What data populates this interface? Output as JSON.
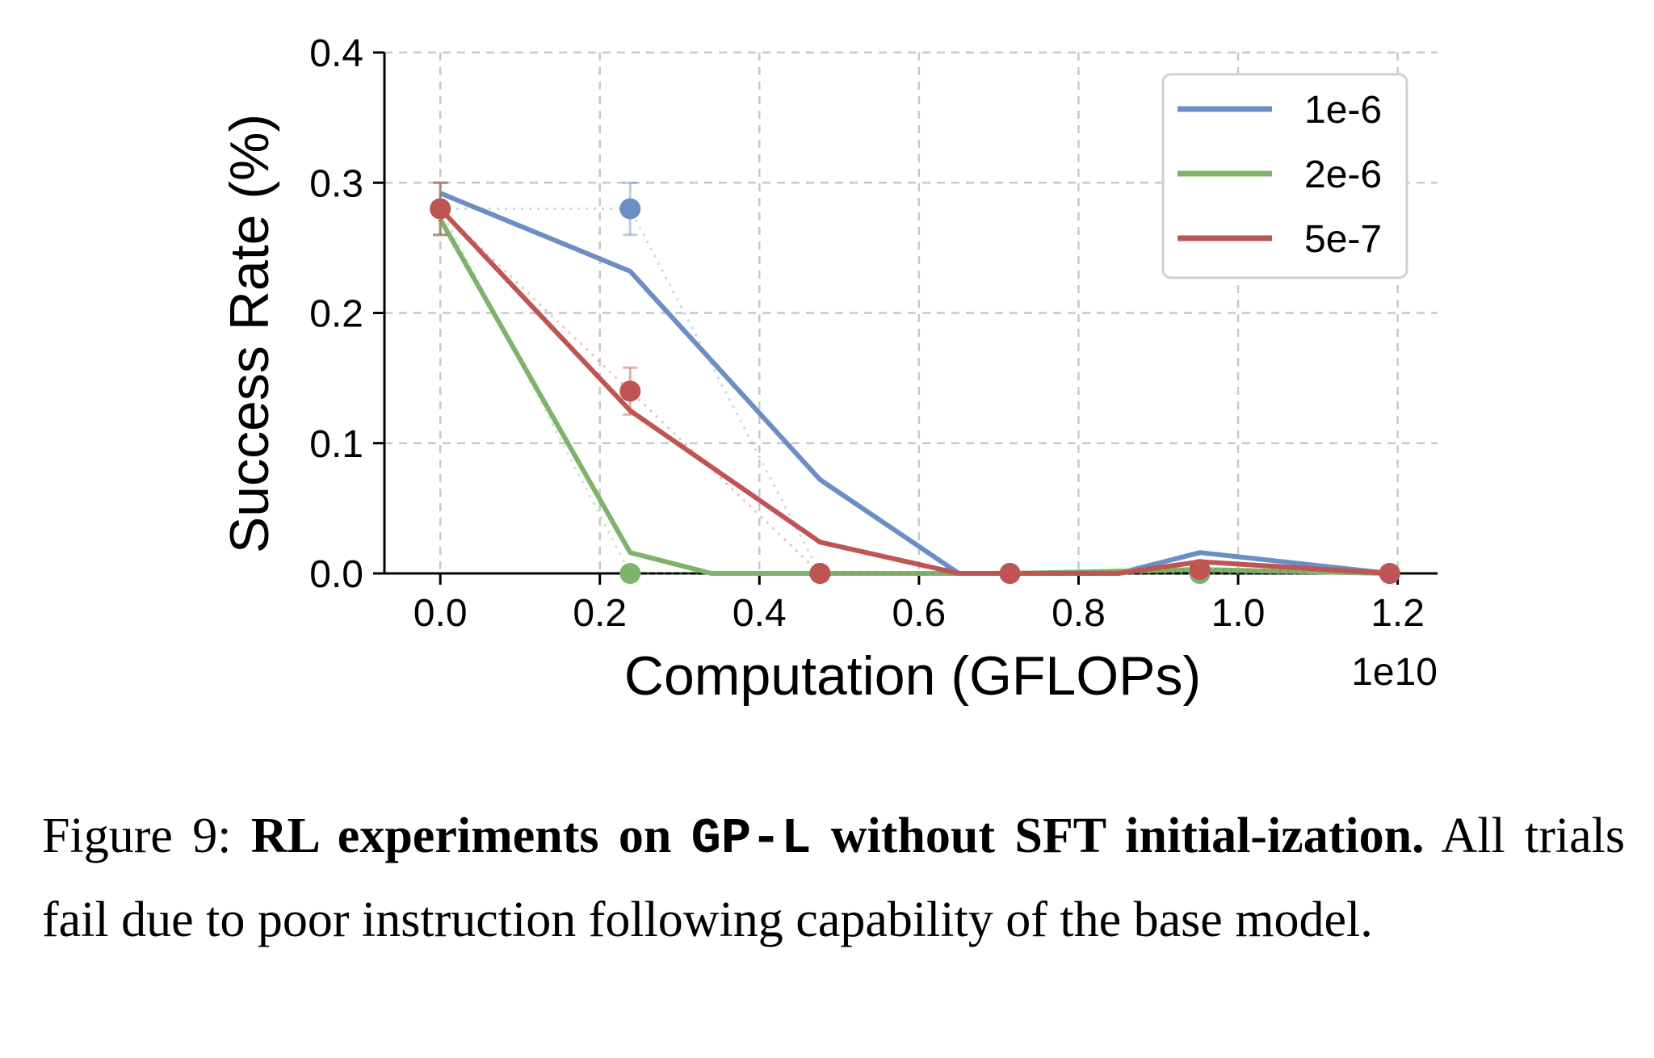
{
  "chart_data": {
    "type": "line",
    "xlabel": "Computation (GFLOPs)",
    "ylabel": "Success Rate (%)",
    "x_offset_label": "1e10",
    "xlim": [
      -0.07,
      1.25
    ],
    "ylim": [
      0.0,
      0.4
    ],
    "xticks": [
      0.0,
      0.2,
      0.4,
      0.6,
      0.8,
      1.0,
      1.2
    ],
    "xtick_labels": [
      "0.0",
      "0.2",
      "0.4",
      "0.6",
      "0.8",
      "1.0",
      "1.2"
    ],
    "yticks": [
      0.0,
      0.1,
      0.2,
      0.3,
      0.4
    ],
    "ytick_labels": [
      "0.0",
      "0.1",
      "0.2",
      "0.3",
      "0.4"
    ],
    "grid": true,
    "legend_position": "top-right",
    "series": [
      {
        "name": "1e-6",
        "color": "#6b8fc2",
        "points_x": [
          0.0,
          0.238,
          0.476,
          0.714,
          0.952,
          1.19
        ],
        "points_y": [
          0.28,
          0.28,
          0.0,
          0.0,
          0.0,
          0.0
        ],
        "errors": [
          0.02,
          0.02,
          0.0,
          0.0,
          0.0,
          0.0
        ],
        "smooth_x": [
          0.0,
          0.238,
          0.476,
          0.65,
          0.714,
          0.85,
          0.952,
          1.19
        ],
        "smooth_y": [
          0.292,
          0.232,
          0.072,
          0.0,
          0.0,
          0.0,
          0.016,
          0.0
        ]
      },
      {
        "name": "2e-6",
        "color": "#7db36b",
        "points_x": [
          0.0,
          0.238,
          0.476,
          0.714,
          0.952,
          1.19
        ],
        "points_y": [
          0.28,
          0.0,
          0.0,
          0.0,
          0.0,
          0.0
        ],
        "errors": [
          0.02,
          0.0,
          0.0,
          0.0,
          0.0,
          0.0
        ],
        "smooth_x": [
          0.0,
          0.238,
          0.34,
          0.714,
          0.952,
          1.19
        ],
        "smooth_y": [
          0.272,
          0.016,
          0.0,
          0.0,
          0.003,
          0.0
        ]
      },
      {
        "name": "5e-7",
        "color": "#bf5553",
        "points_x": [
          0.0,
          0.238,
          0.476,
          0.714,
          0.952,
          1.19
        ],
        "points_y": [
          0.28,
          0.14,
          0.0,
          0.0,
          0.003,
          0.0
        ],
        "errors": [
          0.02,
          0.018,
          0.0,
          0.0,
          0.0,
          0.0
        ],
        "smooth_x": [
          0.0,
          0.238,
          0.476,
          0.65,
          0.714,
          0.85,
          0.952,
          1.19
        ],
        "smooth_y": [
          0.28,
          0.125,
          0.024,
          0.0,
          0.0,
          0.0,
          0.009,
          0.0
        ]
      }
    ]
  },
  "caption": {
    "prefix": "Figure 9: ",
    "bold_part1": "RL experiments on ",
    "mono_part": "GP-L",
    "bold_part2": " without SFT initial-ization.",
    "rest": " All trials fail due to poor instruction following capability of the base model."
  }
}
